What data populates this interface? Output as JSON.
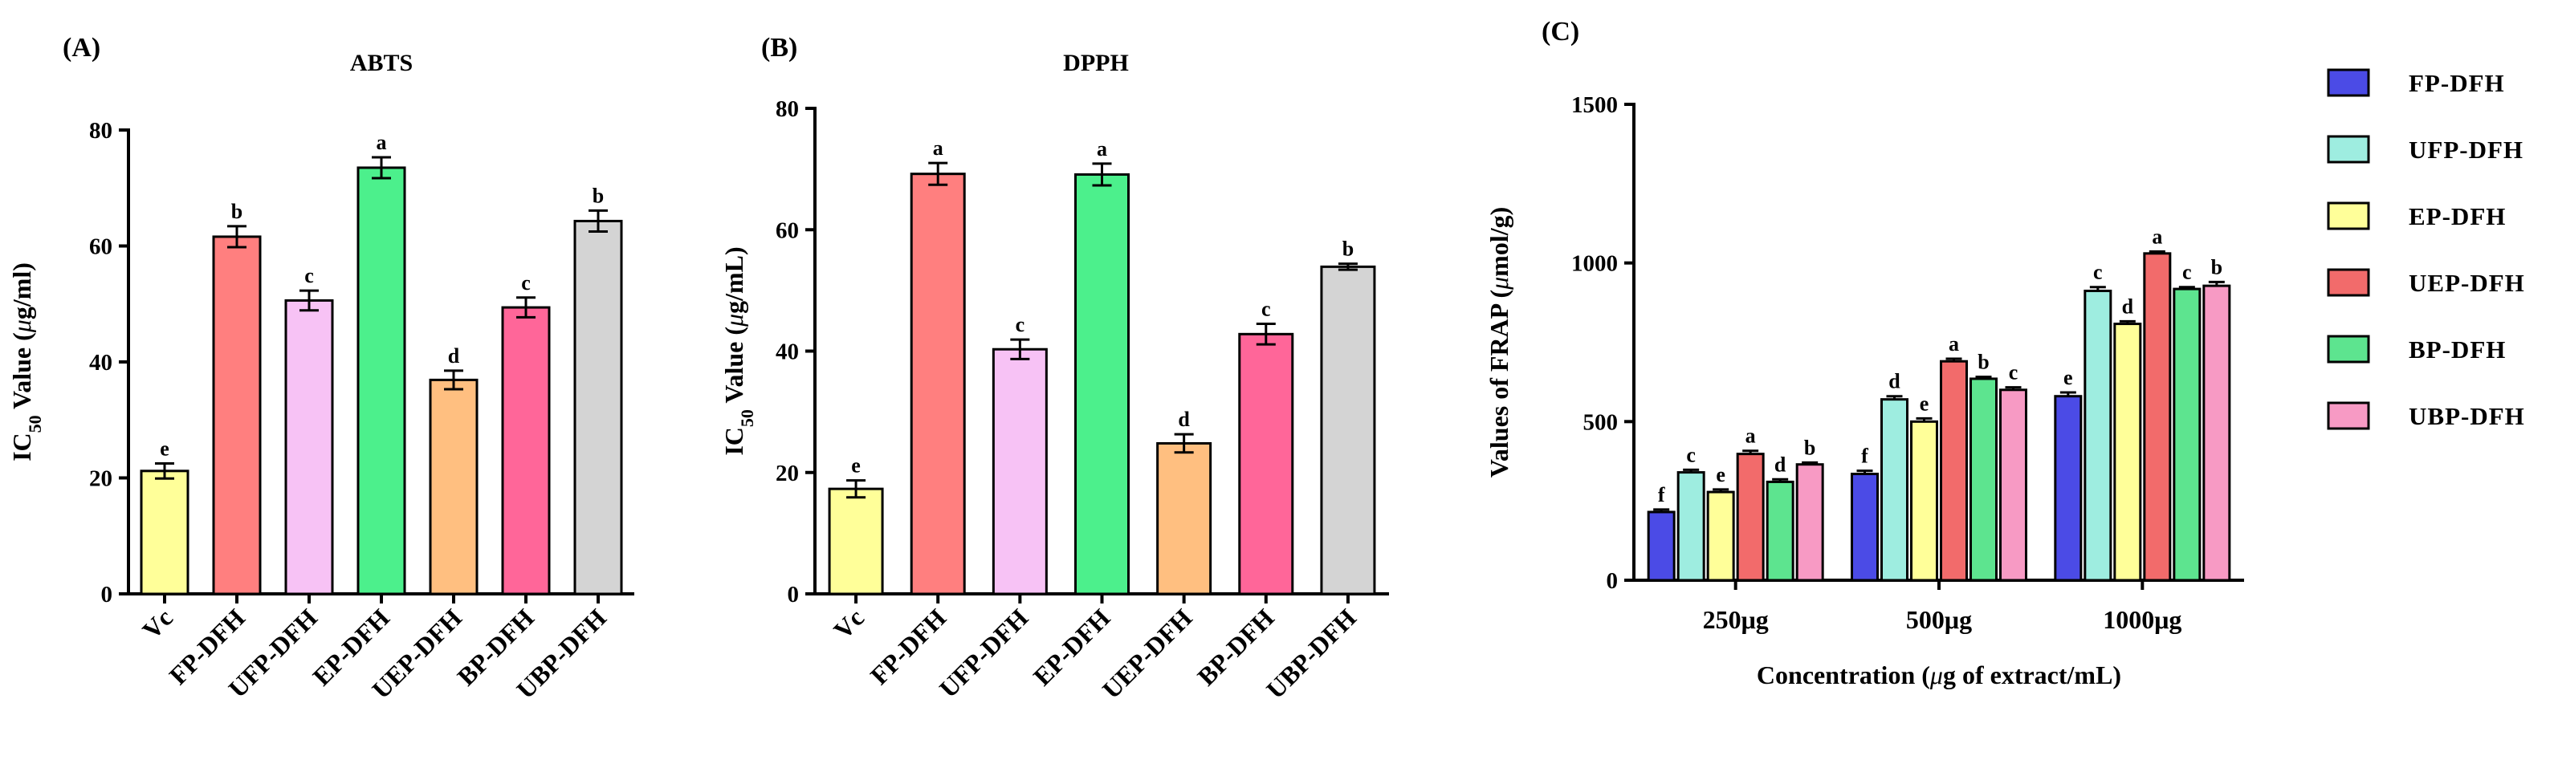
{
  "chart_data": [
    {
      "panel": "(A)",
      "type": "bar",
      "title": "ABTS",
      "ylabel": "IC50 Value  (μg/ml)",
      "ylabel_parts": {
        "pre": "IC",
        "sub": "50",
        "post": " Value  (",
        "italic": "μ",
        "rest": "g/ml)"
      },
      "ylim": [
        0,
        80
      ],
      "yticks": [
        0,
        20,
        40,
        60,
        80
      ],
      "categories": [
        "Vc",
        "FP-DFH",
        "UFP-DFH",
        "EP-DFH",
        "UEP-DFH",
        "BP-DFH",
        "UBP-DFH"
      ],
      "values": [
        21.2,
        61.6,
        50.6,
        73.5,
        36.9,
        49.4,
        64.3
      ],
      "errors": [
        1.3,
        1.8,
        1.7,
        1.8,
        1.6,
        1.7,
        1.8
      ],
      "letters": [
        "e",
        "b",
        "c",
        "a",
        "d",
        "c",
        "b"
      ],
      "colors": [
        "#ffff99",
        "#ff7f7f",
        "#f7c2f5",
        "#4cf08c",
        "#ffbf80",
        "#ff6699",
        "#d4d4d4"
      ]
    },
    {
      "panel": "(B)",
      "type": "bar",
      "title": "DPPH",
      "ylabel": "IC50 Value (μg/mL)",
      "ylabel_parts": {
        "pre": "IC",
        "sub": "50",
        "post": " Value (",
        "italic": "μ",
        "rest": "g/mL)"
      },
      "ylim": [
        0,
        80
      ],
      "yticks": [
        0,
        20,
        40,
        60,
        80
      ],
      "categories": [
        "Vc",
        "FP-DFH",
        "UFP-DFH",
        "EP-DFH",
        "UEP-DFH",
        "BP-DFH",
        "UBP-DFH"
      ],
      "values": [
        17.3,
        69.2,
        40.3,
        69.1,
        24.8,
        42.8,
        53.9
      ],
      "errors": [
        1.4,
        1.8,
        1.6,
        1.8,
        1.5,
        1.7,
        0.5
      ],
      "letters": [
        "e",
        "a",
        "c",
        "a",
        "d",
        "c",
        "b"
      ],
      "colors": [
        "#ffff99",
        "#ff7f7f",
        "#f7c2f5",
        "#4cf08c",
        "#ffbf80",
        "#ff6699",
        "#d4d4d4"
      ]
    },
    {
      "panel": "(C)",
      "type": "bar",
      "title": "",
      "ylabel": "Values of FRAP (μmol/g)",
      "ylabel_parts": {
        "pre": "Values of FRAP (",
        "italic": "μ",
        "rest": "mol/g)"
      },
      "xlabel": "Concentration (μg of extract/mL)",
      "xlabel_parts": {
        "pre": "Concentration (",
        "italic": "μ",
        "rest": "g of extract/mL)"
      },
      "ylim": [
        0,
        1500
      ],
      "yticks": [
        0,
        500,
        1000,
        1500
      ],
      "categories": [
        "250μg",
        "500μg",
        "1000μg"
      ],
      "series": [
        {
          "name": "FP-DFH",
          "color": "#4b4be6",
          "values": [
            215,
            335,
            580
          ],
          "errors": [
            8,
            10,
            12
          ],
          "letters": [
            "f",
            "f",
            "e"
          ]
        },
        {
          "name": "UFP-DFH",
          "color": "#9eede0",
          "values": [
            340,
            570,
            912
          ],
          "errors": [
            8,
            10,
            12
          ],
          "letters": [
            "c",
            "d",
            "c"
          ]
        },
        {
          "name": "EP-DFH",
          "color": "#ffff99",
          "values": [
            278,
            500,
            808
          ],
          "errors": [
            8,
            10,
            8
          ],
          "letters": [
            "e",
            "e",
            "d"
          ]
        },
        {
          "name": "UEP-DFH",
          "color": "#f26b6b",
          "values": [
            398,
            690,
            1030
          ],
          "errors": [
            10,
            8,
            6
          ],
          "letters": [
            "a",
            "a",
            "a"
          ]
        },
        {
          "name": "BP-DFH",
          "color": "#5de48f",
          "values": [
            310,
            635,
            918
          ],
          "errors": [
            8,
            6,
            6
          ],
          "letters": [
            "d",
            "b",
            "c"
          ]
        },
        {
          "name": "UBP-DFH",
          "color": "#f79ac4",
          "values": [
            365,
            600,
            928
          ],
          "errors": [
            6,
            8,
            12
          ],
          "letters": [
            "b",
            "c",
            "b"
          ]
        }
      ]
    }
  ]
}
